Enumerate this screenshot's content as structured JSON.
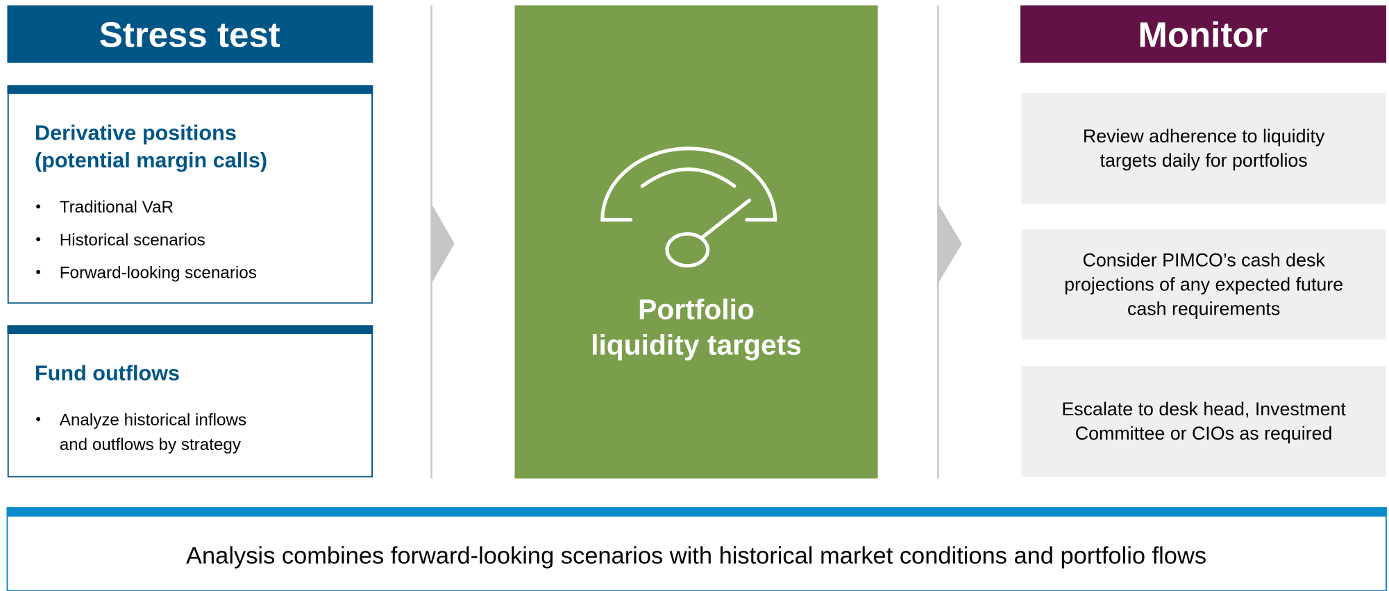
{
  "stress_test": {
    "title": "Stress test",
    "sections": [
      {
        "title_lines": [
          "Derivative positions",
          "(potential margin calls)"
        ],
        "bullets": [
          [
            "Traditional VaR"
          ],
          [
            "Historical scenarios"
          ],
          [
            "Forward-looking scenarios"
          ]
        ]
      },
      {
        "title_lines": [
          "Fund outflows"
        ],
        "bullets": [
          [
            "Analyze historical inflows",
            "and outflows by strategy"
          ]
        ]
      }
    ]
  },
  "center": {
    "label_lines": [
      "Portfolio",
      "liquidity targets"
    ]
  },
  "monitor": {
    "title": "Monitor",
    "items": [
      [
        "Review adherence to liquidity",
        "targets daily for portfolios"
      ],
      [
        "Consider PIMCO’s cash desk",
        "projections of any expected future",
        "cash requirements"
      ],
      [
        "Escalate to desk head, Investment",
        "Committee or CIOs as required"
      ]
    ]
  },
  "footer": "Analysis combines forward-looking scenarios with historical market conditions and portfolio flows"
}
